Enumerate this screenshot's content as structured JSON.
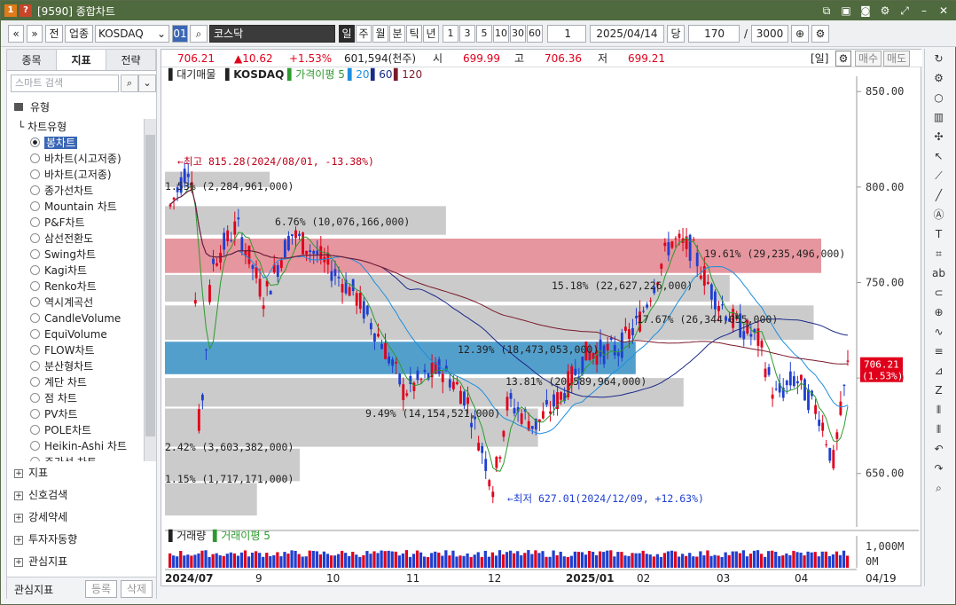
{
  "window": {
    "badge1": "1",
    "badge2": "?",
    "title": "[9590] 종합차트"
  },
  "toolbar": {
    "prev": "«",
    "down": "»",
    "jeon": "전",
    "upjong": "업종",
    "code": "KOSDAQ",
    "code_opt": "01",
    "market": "코스닥",
    "periods": [
      "일",
      "주",
      "월",
      "분",
      "틱",
      "년"
    ],
    "active_period": "일",
    "intervals": [
      "1",
      "3",
      "5",
      "10",
      "30",
      "60"
    ],
    "count": "1",
    "date": "2025/04/14",
    "dang": "당",
    "span": "170",
    "slash": "/",
    "max": "3000"
  },
  "left": {
    "tabs": [
      "종목",
      "지표",
      "전략"
    ],
    "active_tab": "지표",
    "search_placeholder": "스마트 검색",
    "tree_title": "유형",
    "tree_sub": "차트유형",
    "chart_types": [
      "봉차트",
      "바차트(시고저종)",
      "바차트(고저종)",
      "종가선차트",
      "Mountain 차트",
      "P&F차트",
      "삼선전환도",
      "Swing차트",
      "Kagi차트",
      "Renko차트",
      "역시계곡선",
      "CandleVolume",
      "EquiVolume",
      "FLOW차트",
      "분산형차트",
      "계단 차트",
      "점 차트",
      "PV차트",
      "POLE차트",
      "Heikin-Ashi 차트",
      "주가선 차트"
    ],
    "groups": [
      "지표",
      "신호검색",
      "강세약세",
      "투자자동향",
      "관심지표"
    ],
    "bottom_label": "관심지표",
    "btn_reg": "등록",
    "btn_del": "삭제"
  },
  "info": {
    "price": "706.21",
    "change": "▲10.62",
    "pct": "+1.53%",
    "volume": "601,594(천주)",
    "open_label": "시",
    "open": "699.99",
    "high_label": "고",
    "high": "706.36",
    "low_label": "저",
    "low": "699.21",
    "period_tag": "[일]",
    "buy": "매수",
    "sell": "매도"
  },
  "legend": {
    "main": "대기매물",
    "name": "KOSDAQ",
    "ma": "가격이평 5",
    "ma20": "20",
    "ma60": "60",
    "ma120": "120",
    "vol": "거래량",
    "vma": "거래이평 5"
  },
  "annotations": {
    "high": "최고 815.28(2024/08/01, -13.38%)",
    "low": "최저 627.01(2024/12/09, +12.63%)",
    "last_price": "706.21",
    "last_pct": "(1.53%)"
  },
  "colors": {
    "up": "#e0001b",
    "down": "#1f3fd0",
    "ma5": "#2e9a2e",
    "ma20": "#1c8ee0",
    "ma60": "#1b2a8a",
    "ma120": "#7a1a2a",
    "zone_red": "#e5909a",
    "zone_blue": "#4a9ac9",
    "zone_gray": "#c8c8c8"
  },
  "chart_data": {
    "type": "candlestick",
    "y_ticks": [
      "850.00",
      "800.00",
      "750.00",
      "700.00",
      "650.00"
    ],
    "vol_ticks": [
      "1,000M",
      "0M"
    ],
    "x_ticks": [
      "2024/07",
      "9",
      "10",
      "11",
      "12",
      "2025/01",
      "02",
      "03",
      "04"
    ],
    "last_date": "04/19",
    "volume_profile": [
      {
        "label": "1.53% (2,284,961,000)",
        "low": 800,
        "high": 808
      },
      {
        "label": "6.76% (10,076,166,000)",
        "low": 775,
        "high": 790
      },
      {
        "label": "19.61% (29,235,496,000)",
        "low": 755,
        "high": 773
      },
      {
        "label": "15.18% (22,627,226,000)",
        "low": 740,
        "high": 754
      },
      {
        "label": "17.67% (26,344,055,000)",
        "low": 720,
        "high": 738
      },
      {
        "label": "12.39% (18,473,053,000)",
        "low": 702,
        "high": 719
      },
      {
        "label": "13.81% (20,589,964,000)",
        "low": 685,
        "high": 700
      },
      {
        "label": "9.49% (14,154,521,000)",
        "low": 664,
        "high": 684
      },
      {
        "label": "2.42% (3,603,382,000)",
        "low": 646,
        "high": 663
      },
      {
        "label": "1.15% (1,717,171,000)",
        "low": 628,
        "high": 645
      }
    ]
  }
}
